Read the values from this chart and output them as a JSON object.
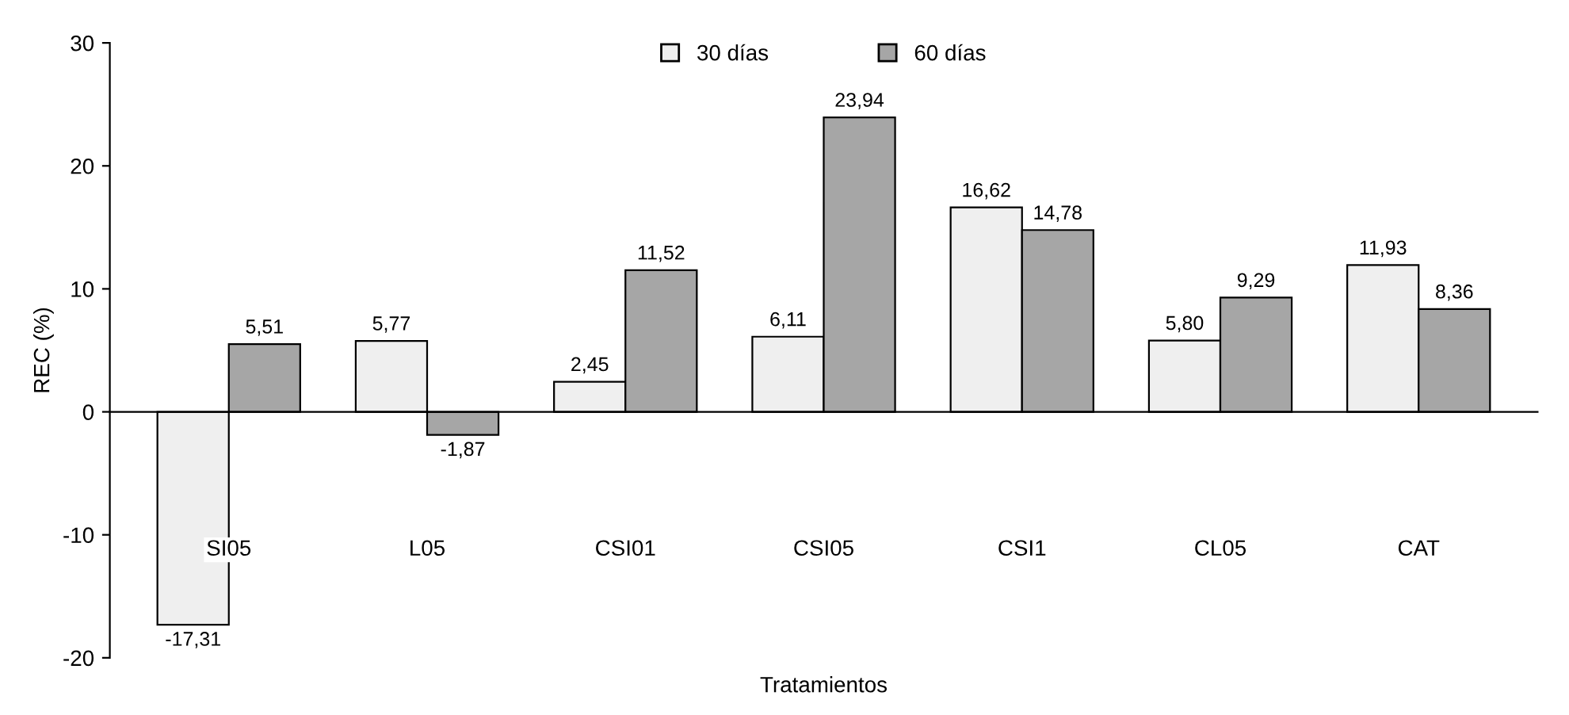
{
  "chart_data": {
    "type": "bar",
    "xlabel": "Tratamientos",
    "ylabel": "REC (%)",
    "categories": [
      "SI05",
      "L05",
      "CSI01",
      "CSI05",
      "CSI1",
      "CL05",
      "CAT"
    ],
    "series": [
      {
        "name": "30 días",
        "color": "#efefef",
        "values": [
          -17.31,
          5.77,
          2.45,
          6.11,
          16.62,
          5.8,
          11.93
        ],
        "value_labels": [
          "-17,31",
          "5,77",
          "2,45",
          "6,11",
          "16,62",
          "5,80",
          "11,93"
        ]
      },
      {
        "name": "60 días",
        "color": "#a6a6a6",
        "values": [
          5.51,
          -1.87,
          11.52,
          23.94,
          14.78,
          9.29,
          8.36
        ],
        "value_labels": [
          "5,51",
          "-1,87",
          "11,52",
          "23,94",
          "14,78",
          "9,29",
          "8,36"
        ]
      }
    ],
    "ylim": [
      -20,
      30
    ],
    "yticks": [
      -20,
      -10,
      0,
      10,
      20,
      30
    ],
    "legend": "top"
  }
}
